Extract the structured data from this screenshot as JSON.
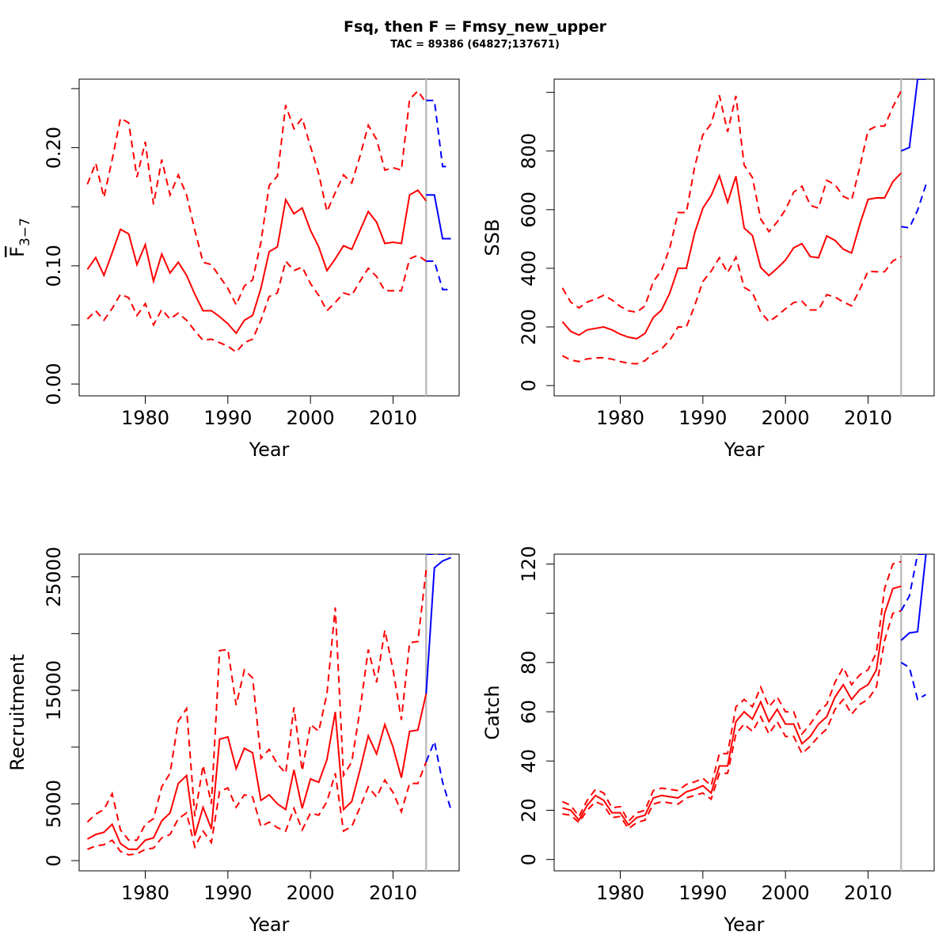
{
  "title": "Fsq, then F = Fmsy_new_upper",
  "subtitle": "TAC = 89386 (64827;137671)",
  "colors": {
    "history": "#ff0000",
    "projection": "#0000ff",
    "divider": "#bebebe"
  },
  "chart_data": [
    {
      "type": "line",
      "panel": "F",
      "xlabel": "Year",
      "ylabel": "F",
      "ylabel_subscript": "3−7",
      "xlim": [
        1972,
        2018
      ],
      "ylim": [
        -0.01,
        0.258
      ],
      "xticks": [
        1980,
        1990,
        2000,
        2010
      ],
      "yticks": [
        0.0,
        0.05,
        0.1,
        0.15,
        0.2,
        0.25
      ],
      "ytick_labels": [
        "0.00",
        "",
        "0.10",
        "",
        "0.20",
        ""
      ],
      "divider_x": 2014,
      "x": [
        1973,
        1974,
        1975,
        1976,
        1977,
        1978,
        1979,
        1980,
        1981,
        1982,
        1983,
        1984,
        1985,
        1986,
        1987,
        1988,
        1989,
        1990,
        1991,
        1992,
        1993,
        1994,
        1995,
        1996,
        1997,
        1998,
        1999,
        2000,
        2001,
        2002,
        2003,
        2004,
        2005,
        2006,
        2007,
        2008,
        2009,
        2010,
        2011,
        2012,
        2013,
        2014
      ],
      "series": [
        {
          "role": "estimate",
          "style": "solid",
          "color": "#ff0000",
          "values": [
            0.097,
            0.107,
            0.092,
            0.111,
            0.131,
            0.127,
            0.101,
            0.118,
            0.087,
            0.11,
            0.094,
            0.103,
            0.092,
            0.076,
            0.062,
            0.062,
            0.057,
            0.051,
            0.043,
            0.054,
            0.058,
            0.081,
            0.112,
            0.116,
            0.156,
            0.144,
            0.149,
            0.13,
            0.116,
            0.096,
            0.106,
            0.117,
            0.114,
            0.13,
            0.146,
            0.137,
            0.119,
            0.12,
            0.119,
            0.16,
            0.164,
            0.155
          ]
        },
        {
          "role": "upper",
          "style": "dashed",
          "color": "#ff0000",
          "values": [
            0.169,
            0.187,
            0.158,
            0.19,
            0.225,
            0.221,
            0.175,
            0.205,
            0.152,
            0.19,
            0.16,
            0.177,
            0.16,
            0.13,
            0.103,
            0.101,
            0.091,
            0.081,
            0.067,
            0.083,
            0.088,
            0.12,
            0.168,
            0.176,
            0.236,
            0.216,
            0.225,
            0.201,
            0.178,
            0.146,
            0.162,
            0.177,
            0.17,
            0.193,
            0.219,
            0.207,
            0.181,
            0.183,
            0.181,
            0.241,
            0.248,
            0.238
          ]
        },
        {
          "role": "lower",
          "style": "dashed",
          "color": "#ff0000",
          "values": [
            0.055,
            0.062,
            0.054,
            0.064,
            0.076,
            0.073,
            0.058,
            0.068,
            0.05,
            0.063,
            0.055,
            0.06,
            0.054,
            0.045,
            0.037,
            0.038,
            0.035,
            0.032,
            0.027,
            0.035,
            0.038,
            0.054,
            0.074,
            0.077,
            0.104,
            0.096,
            0.099,
            0.085,
            0.075,
            0.062,
            0.069,
            0.077,
            0.075,
            0.087,
            0.098,
            0.091,
            0.079,
            0.079,
            0.079,
            0.106,
            0.109,
            0.104
          ]
        }
      ],
      "projection": {
        "x": [
          2014,
          2015,
          2016,
          2017
        ],
        "series": [
          {
            "role": "estimate",
            "style": "solid",
            "color": "#0000ff",
            "values": [
              0.16,
              0.16,
              0.123,
              0.123
            ]
          },
          {
            "role": "upper",
            "style": "dashed",
            "color": "#0000ff",
            "values": [
              0.24,
              0.24,
              0.184,
              0.184
            ]
          },
          {
            "role": "lower",
            "style": "dashed",
            "color": "#0000ff",
            "values": [
              0.104,
              0.104,
              0.08,
              0.08
            ]
          }
        ]
      }
    },
    {
      "type": "line",
      "panel": "SSB",
      "xlabel": "Year",
      "ylabel": "SSB",
      "xlim": [
        1972,
        2018
      ],
      "ylim": [
        -35,
        1045
      ],
      "xticks": [
        1980,
        1990,
        2000,
        2010
      ],
      "yticks": [
        0,
        200,
        400,
        600,
        800,
        1000
      ],
      "ytick_labels": [
        "0",
        "200",
        "400",
        "600",
        "800",
        ""
      ],
      "divider_x": 2014,
      "x": [
        1973,
        1974,
        1975,
        1976,
        1977,
        1978,
        1979,
        1980,
        1981,
        1982,
        1983,
        1984,
        1985,
        1986,
        1987,
        1988,
        1989,
        1990,
        1991,
        1992,
        1993,
        1994,
        1995,
        1996,
        1997,
        1998,
        1999,
        2000,
        2001,
        2002,
        2003,
        2004,
        2005,
        2006,
        2007,
        2008,
        2009,
        2010,
        2011,
        2012,
        2013,
        2014
      ],
      "series": [
        {
          "role": "estimate",
          "style": "solid",
          "color": "#ff0000",
          "values": [
            218,
            185,
            172,
            190,
            195,
            200,
            190,
            175,
            165,
            160,
            178,
            232,
            258,
            316,
            400,
            400,
            520,
            605,
            648,
            715,
            625,
            714,
            537,
            512,
            403,
            375,
            400,
            428,
            470,
            484,
            440,
            436,
            510,
            495,
            465,
            452,
            550,
            635,
            640,
            640,
            695,
            725
          ]
        },
        {
          "role": "upper",
          "style": "dashed",
          "color": "#ff0000",
          "values": [
            333,
            285,
            265,
            285,
            295,
            308,
            292,
            270,
            255,
            250,
            272,
            355,
            393,
            470,
            590,
            590,
            745,
            855,
            893,
            990,
            865,
            988,
            752,
            710,
            568,
            525,
            558,
            600,
            660,
            680,
            615,
            605,
            700,
            685,
            645,
            632,
            745,
            870,
            885,
            885,
            950,
            1005
          ]
        },
        {
          "role": "lower",
          "style": "dashed",
          "color": "#ff0000",
          "values": [
            102,
            87,
            82,
            91,
            94,
            95,
            90,
            82,
            76,
            74,
            85,
            110,
            125,
            155,
            200,
            200,
            272,
            355,
            390,
            436,
            385,
            438,
            335,
            318,
            250,
            218,
            238,
            262,
            283,
            288,
            258,
            258,
            310,
            302,
            285,
            272,
            328,
            390,
            388,
            388,
            425,
            440
          ]
        }
      ],
      "projection": {
        "x": [
          2014,
          2015,
          2016,
          2017
        ],
        "series": [
          {
            "role": "estimate",
            "style": "solid",
            "color": "#0000ff",
            "values": [
              800,
              812,
              1045,
              1045
            ]
          },
          {
            "role": "lower",
            "style": "dashed",
            "color": "#0000ff",
            "values": [
              542,
              538,
              598,
              685
            ]
          }
        ]
      }
    },
    {
      "type": "line",
      "panel": "Recruitment",
      "xlabel": "Year",
      "ylabel": "Recruitment",
      "xlim": [
        1972,
        2018
      ],
      "ylim": [
        -900,
        27000
      ],
      "xticks": [
        1980,
        1990,
        2000,
        2010
      ],
      "yticks": [
        0,
        5000,
        10000,
        15000,
        20000,
        25000
      ],
      "ytick_labels": [
        "0",
        "5000",
        "",
        "15000",
        "",
        "25000"
      ],
      "divider_x": 2014,
      "x": [
        1973,
        1974,
        1975,
        1976,
        1977,
        1978,
        1979,
        1980,
        1981,
        1982,
        1983,
        1984,
        1985,
        1986,
        1987,
        1988,
        1989,
        1990,
        1991,
        1992,
        1993,
        1994,
        1995,
        1996,
        1997,
        1998,
        1999,
        2000,
        2001,
        2002,
        2003,
        2004,
        2005,
        2006,
        2007,
        2008,
        2009,
        2010,
        2011,
        2012,
        2013,
        2014
      ],
      "series": [
        {
          "role": "estimate",
          "style": "solid",
          "color": "#ff0000",
          "values": [
            1900,
            2300,
            2500,
            3200,
            1500,
            1000,
            1000,
            1800,
            2000,
            3500,
            4200,
            6800,
            7500,
            2200,
            4700,
            2800,
            10700,
            10900,
            8100,
            9900,
            9500,
            5300,
            5800,
            5000,
            4500,
            8000,
            4600,
            7200,
            6900,
            8900,
            13100,
            4500,
            5200,
            8000,
            11000,
            9400,
            12000,
            10000,
            7300,
            11400,
            11500,
            14700
          ]
        },
        {
          "role": "upper",
          "style": "dashed",
          "color": "#ff0000",
          "values": [
            3400,
            4100,
            4500,
            5900,
            2700,
            1800,
            1800,
            3200,
            3700,
            6500,
            7700,
            12300,
            13400,
            3900,
            8400,
            5000,
            18500,
            18600,
            13700,
            16800,
            16100,
            9000,
            9800,
            8500,
            7700,
            13500,
            7900,
            12000,
            11400,
            14700,
            22300,
            7500,
            8700,
            13300,
            18600,
            15700,
            20300,
            16800,
            12400,
            19200,
            19300,
            25600
          ]
        },
        {
          "role": "lower",
          "style": "dashed",
          "color": "#ff0000",
          "values": [
            1000,
            1300,
            1400,
            1800,
            800,
            500,
            600,
            1000,
            1100,
            2000,
            2300,
            3700,
            4200,
            1200,
            2600,
            1600,
            6100,
            6400,
            4700,
            5800,
            5600,
            3000,
            3400,
            2900,
            2600,
            4600,
            2700,
            4200,
            4000,
            5200,
            7700,
            2600,
            3000,
            4700,
            6500,
            5600,
            7100,
            6000,
            4300,
            6800,
            6800,
            8700
          ]
        }
      ],
      "projection": {
        "x": [
          2014,
          2015,
          2016,
          2017
        ],
        "series": [
          {
            "role": "estimate",
            "style": "solid",
            "color": "#0000ff",
            "values": [
              14700,
              25800,
              26400,
              26700
            ]
          },
          {
            "role": "upper",
            "style": "dashed",
            "color": "#0000ff",
            "values": [
              27000,
              27000,
              27000,
              27000
            ]
          },
          {
            "role": "lower",
            "style": "dashed",
            "color": "#0000ff",
            "values": [
              8700,
              10500,
              6900,
              4500
            ]
          }
        ]
      }
    },
    {
      "type": "line",
      "panel": "Catch",
      "xlabel": "Year",
      "ylabel": "Catch",
      "xlim": [
        1972,
        2018
      ],
      "ylim": [
        -4.6,
        124
      ],
      "xticks": [
        1980,
        1990,
        2000,
        2010
      ],
      "yticks": [
        0,
        20,
        40,
        60,
        80,
        100,
        120
      ],
      "ytick_labels": [
        "0",
        "20",
        "40",
        "60",
        "80",
        "",
        "120"
      ],
      "divider_x": 2014,
      "x": [
        1973,
        1974,
        1975,
        1976,
        1977,
        1978,
        1979,
        1980,
        1981,
        1982,
        1983,
        1984,
        1985,
        1986,
        1987,
        1988,
        1989,
        1990,
        1991,
        1992,
        1993,
        1994,
        1995,
        1996,
        1997,
        1998,
        1999,
        2000,
        2001,
        2002,
        2003,
        2004,
        2005,
        2006,
        2007,
        2008,
        2009,
        2010,
        2011,
        2012,
        2013,
        2014
      ],
      "series": [
        {
          "role": "estimate",
          "style": "solid",
          "color": "#ff0000",
          "values": [
            21,
            20,
            16,
            22,
            26,
            24,
            19,
            19,
            14,
            17,
            18,
            25,
            26,
            25.5,
            25,
            27.5,
            28.5,
            30,
            27,
            38,
            38,
            56,
            60,
            57,
            64,
            56,
            61,
            55,
            55,
            47,
            50,
            55,
            58,
            66,
            71,
            65,
            69,
            71,
            77,
            100,
            110,
            111
          ]
        },
        {
          "role": "upper",
          "style": "dashed",
          "color": "#ff0000",
          "values": [
            23.5,
            22,
            17.5,
            24,
            28.5,
            27,
            21,
            21.5,
            15.5,
            19,
            20,
            28,
            29,
            28.5,
            28,
            30.5,
            31.5,
            33,
            30,
            43,
            43,
            62,
            65,
            62,
            70,
            62,
            66,
            60,
            60,
            51,
            55,
            60,
            63,
            72,
            78,
            71,
            75,
            77,
            84,
            110,
            120,
            121
          ]
        },
        {
          "role": "lower",
          "style": "dashed",
          "color": "#ff0000",
          "values": [
            18.5,
            18,
            15,
            20,
            23.5,
            22,
            17,
            17.5,
            12.5,
            15,
            16,
            22.5,
            23.5,
            23,
            22.5,
            25,
            26,
            27,
            24.5,
            35,
            35,
            51,
            55,
            52,
            58,
            51,
            56,
            50,
            50,
            43,
            46,
            50,
            53,
            61,
            65,
            59,
            63,
            65,
            70,
            89,
            100,
            101
          ]
        }
      ],
      "projection": {
        "x": [
          2014,
          2015,
          2016,
          2017
        ],
        "series": [
          {
            "role": "estimate",
            "style": "solid",
            "color": "#0000ff",
            "values": [
              89,
              92,
              92.5,
              124
            ]
          },
          {
            "role": "upper",
            "style": "dashed",
            "color": "#0000ff",
            "values": [
              101,
              107,
              124,
              124
            ]
          },
          {
            "role": "lower",
            "style": "dashed",
            "color": "#0000ff",
            "values": [
              80,
              78,
              65,
              67
            ]
          }
        ]
      }
    }
  ]
}
